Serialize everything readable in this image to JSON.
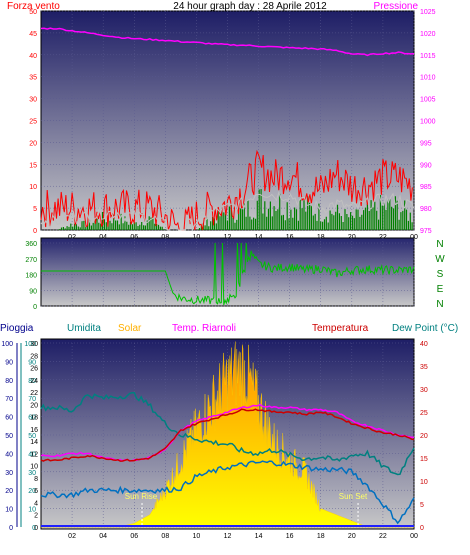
{
  "header": {
    "left_title": "Forza vento",
    "center_title": "24 hour graph day : 28 Aprile 2012",
    "right_title": "Pressione"
  },
  "wind_dir_labels": [
    "N",
    "W",
    "S",
    "E",
    "N"
  ],
  "bottom_legend": {
    "pioggia": "Pioggia",
    "umidita": "Umidita",
    "solar": "Solar",
    "temp_riarnoli": "Temp. Riarnoli",
    "temperatura": "Temperatura",
    "dew_point": "Dew Point (°C)"
  },
  "annotations": {
    "sunrise": "Sun Rise",
    "sunset": "Sun Set"
  },
  "colors": {
    "wind": "#ff0000",
    "gust": "#008000",
    "wind_avg": "#c0c0c0",
    "pressure": "#ff00ff",
    "direction": "#00c000",
    "humidity": "#008080",
    "solar": "#ffcc00",
    "temp_riarnoli": "#ff00ff",
    "temperature": "#cc0000",
    "dew_point": "#0070c0",
    "plot_top": "#1e1e66",
    "plot_bottom": "#c8c8c8"
  },
  "chart_data": [
    {
      "type": "line",
      "title": "24 hour graph day : 28 Aprile 2012",
      "x_ticks": [
        "02",
        "04",
        "06",
        "08",
        "10",
        "12",
        "14",
        "16",
        "18",
        "20",
        "22",
        "00"
      ],
      "y_left": {
        "label": "Forza vento",
        "ticks": [
          0,
          5,
          10,
          15,
          20,
          25,
          30,
          35,
          40,
          45,
          50
        ],
        "lim": [
          0,
          50
        ]
      },
      "y_right": {
        "label": "Pressione",
        "ticks": [
          975,
          980,
          985,
          990,
          995,
          1000,
          1005,
          1010,
          1015,
          1020,
          1025
        ],
        "lim": [
          975,
          1025
        ]
      },
      "x_hours": [
        1,
        2,
        3,
        4,
        5,
        6,
        7,
        8,
        9,
        10,
        11,
        12,
        13,
        14,
        15,
        16,
        17,
        18,
        19,
        20,
        21,
        22,
        23,
        24
      ],
      "series": [
        {
          "axis": "right",
          "values": [
            1021,
            1020.5,
            1020,
            1019.5,
            1019,
            1018.7,
            1018.5,
            1018.3,
            1018,
            1017.8,
            1017.5,
            1017.3,
            1017.2,
            1017,
            1016.8,
            1016.6,
            1016.5,
            1016.3,
            1016,
            1015.2,
            1015,
            1015.3,
            1015.5,
            1015.2
          ]
        },
        {
          "axis": "left",
          "values": [
            5,
            5,
            5,
            5,
            5,
            5,
            5,
            3,
            0,
            3,
            5,
            6,
            9,
            14,
            12,
            13,
            10,
            9,
            13,
            10,
            10,
            12,
            12,
            10
          ]
        },
        {
          "axis": "left",
          "values": [
            0,
            1,
            1,
            2,
            2,
            1,
            2,
            0,
            0,
            0,
            2,
            3,
            3,
            5,
            5,
            4,
            4,
            3,
            3,
            2,
            3,
            4,
            4,
            2
          ]
        },
        {
          "axis": "left",
          "values": [
            2,
            3,
            3,
            4,
            4,
            3,
            3,
            1,
            0,
            2,
            4,
            5,
            6,
            9,
            8,
            8,
            6,
            5,
            6,
            5,
            6,
            7,
            7,
            5
          ]
        }
      ]
    },
    {
      "type": "line",
      "y_ticks": [
        0,
        90,
        180,
        270,
        360
      ],
      "ylim": [
        0,
        360
      ],
      "x_hours": [
        1,
        2,
        3,
        4,
        5,
        6,
        7,
        8,
        8.5,
        9,
        10,
        11,
        11.5,
        12,
        12.5,
        13,
        13.5,
        14,
        15,
        16,
        17,
        18,
        19,
        20,
        21,
        22,
        23,
        24
      ],
      "values": [
        200,
        200,
        200,
        200,
        200,
        200,
        200,
        200,
        70,
        45,
        35,
        30,
        25,
        35,
        60,
        180,
        300,
        240,
        215,
        225,
        205,
        215,
        185,
        205,
        210,
        205,
        205,
        210
      ]
    },
    {
      "type": "area",
      "x_ticks": [
        "02",
        "04",
        "06",
        "08",
        "10",
        "12",
        "14",
        "16",
        "18",
        "20",
        "22",
        "00"
      ],
      "axes": {
        "pioggia": [
          0,
          10,
          20,
          30,
          40,
          50,
          60,
          70,
          80,
          90,
          100
        ],
        "umidita": [
          0,
          10,
          20,
          30,
          40,
          50,
          60,
          70,
          80,
          90,
          100
        ],
        "solar": [
          0,
          2,
          4,
          6,
          8,
          10,
          12,
          14,
          16,
          18,
          20,
          22,
          24,
          26,
          28,
          30
        ],
        "temperatura": [
          0,
          5,
          10,
          15,
          20,
          25,
          30,
          35,
          40
        ]
      },
      "temp_lim": [
        0,
        40
      ],
      "x_hours": [
        1,
        2,
        3,
        4,
        5,
        6,
        7,
        8,
        9,
        10,
        11,
        12,
        13,
        14,
        15,
        16,
        17,
        18,
        19,
        20,
        21,
        22,
        23,
        24
      ],
      "series": [
        {
          "name": "Umidita",
          "values": [
            65,
            63,
            72,
            70,
            71,
            72,
            66,
            56,
            50,
            48,
            46,
            45,
            41,
            40,
            42,
            39,
            37,
            38,
            36,
            39,
            40,
            33,
            28,
            44
          ]
        },
        {
          "name": "Temperatura",
          "values": [
            14.5,
            15,
            15.5,
            15,
            14.5,
            14.5,
            15,
            17,
            21,
            22.5,
            23.5,
            24.5,
            25.5,
            25.5,
            25,
            25,
            24.5,
            25,
            24,
            22.5,
            21.5,
            20.5,
            20,
            19
          ]
        },
        {
          "name": "Temp. Riarnoli",
          "values": [
            15.5,
            16,
            16,
            15,
            14.5,
            14.5,
            15,
            17,
            21,
            23,
            24,
            25,
            26,
            26.5,
            26,
            26,
            25.5,
            25.5,
            25,
            23,
            22,
            21,
            20,
            19.5
          ]
        },
        {
          "name": "Dew Point (°C)",
          "values": [
            7,
            7,
            8,
            8,
            8,
            8,
            8,
            8,
            8.5,
            11,
            12,
            13,
            13.5,
            14,
            14,
            13.5,
            13,
            12.5,
            12.5,
            12,
            9,
            5,
            1,
            6
          ]
        },
        {
          "name": "Solar",
          "values": [
            0,
            0,
            0,
            0,
            0,
            0.6,
            2,
            6,
            11,
            16,
            20,
            24,
            26,
            20,
            14,
            11,
            9,
            3,
            2,
            1,
            0,
            0,
            0,
            0
          ]
        },
        {
          "name": "Pioggia",
          "values": [
            0,
            0,
            0,
            0,
            0,
            0,
            0,
            0,
            0,
            0,
            0,
            0,
            0,
            0,
            0,
            0,
            0,
            0,
            0,
            0,
            0,
            0,
            0,
            0
          ]
        }
      ],
      "sunrise_hour": 6.5,
      "sunset_hour": 20.4
    }
  ]
}
